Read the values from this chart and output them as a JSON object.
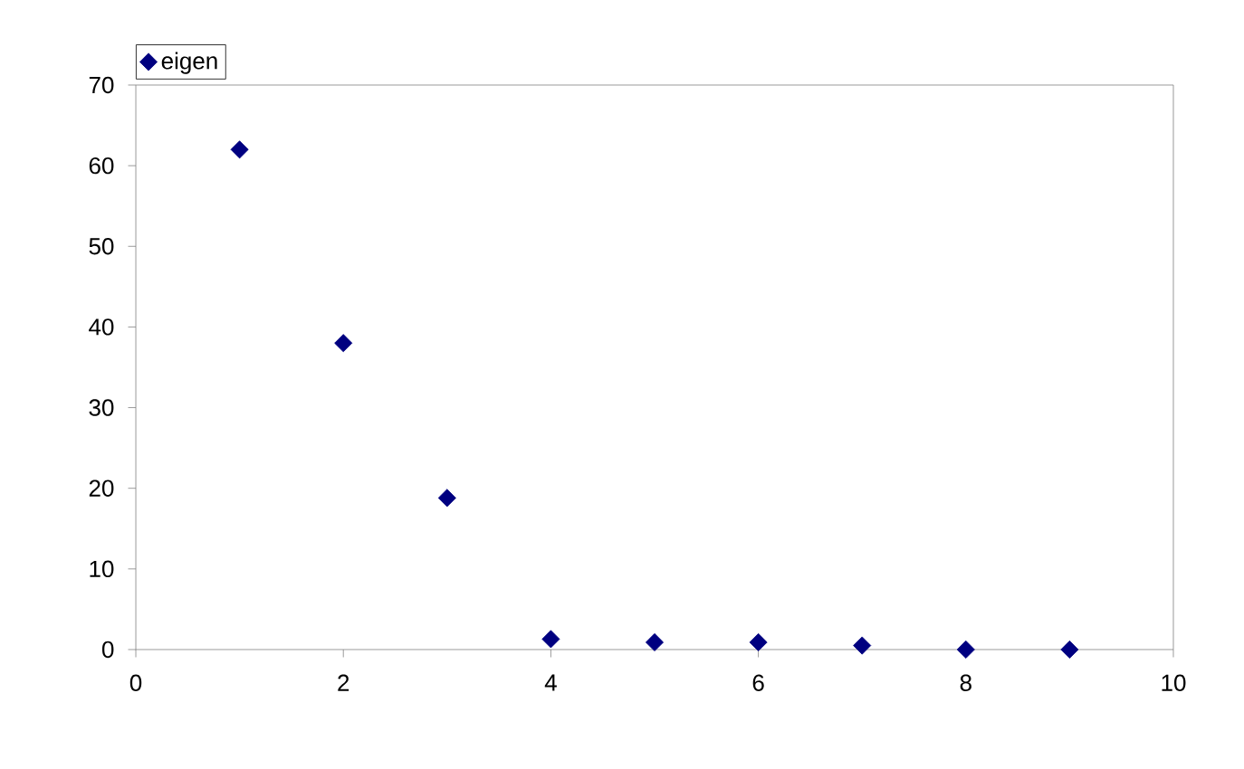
{
  "chart_data": {
    "type": "scatter",
    "x": [
      1,
      2,
      3,
      4,
      5,
      6,
      7,
      8,
      9
    ],
    "series": [
      {
        "name": "eigen",
        "color": "#000080",
        "values": [
          62,
          38,
          18.8,
          1.3,
          0.9,
          0.9,
          0.5,
          0,
          0
        ]
      }
    ],
    "xlim": [
      0,
      10
    ],
    "ylim": [
      0,
      70
    ],
    "xticks": [
      0,
      2,
      4,
      6,
      8,
      10
    ],
    "yticks": [
      0,
      10,
      20,
      30,
      40,
      50,
      60,
      70
    ],
    "marker": "diamond",
    "legend": "top left",
    "grid": false
  }
}
